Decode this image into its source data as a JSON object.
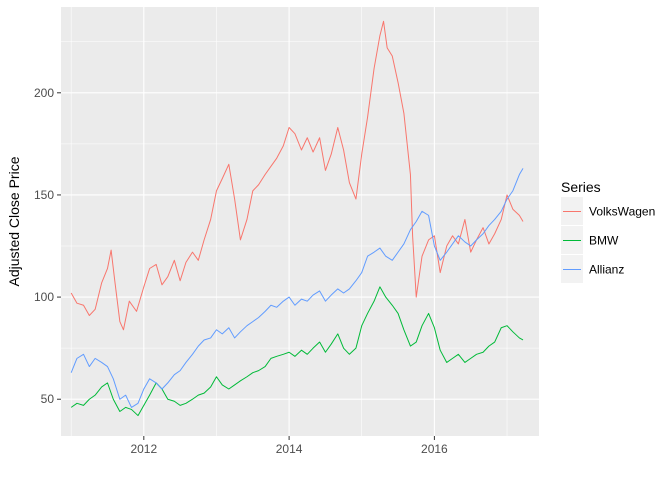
{
  "chart_data": {
    "type": "line",
    "title": "",
    "xlabel": "",
    "ylabel": "Adjusted Close Price",
    "xlim": [
      2010.86,
      2017.44
    ],
    "ylim": [
      32,
      242
    ],
    "x_ticks": [
      2012,
      2014,
      2016
    ],
    "x_tick_labels": [
      "2012",
      "2014",
      "2016"
    ],
    "y_ticks": [
      50,
      100,
      150,
      200
    ],
    "y_tick_labels": [
      "50",
      "100",
      "150",
      "200"
    ],
    "grid": true,
    "legend": {
      "title": "Series",
      "position": "right"
    },
    "series": [
      {
        "name": "VolksWagen",
        "color": "#F8766D",
        "points": [
          [
            2011.0,
            102
          ],
          [
            2011.08,
            97
          ],
          [
            2011.17,
            96
          ],
          [
            2011.25,
            91
          ],
          [
            2011.33,
            94
          ],
          [
            2011.42,
            107
          ],
          [
            2011.5,
            114
          ],
          [
            2011.55,
            123
          ],
          [
            2011.6,
            108
          ],
          [
            2011.67,
            88
          ],
          [
            2011.72,
            84
          ],
          [
            2011.8,
            98
          ],
          [
            2011.9,
            93
          ],
          [
            2012.0,
            105
          ],
          [
            2012.08,
            114
          ],
          [
            2012.17,
            116
          ],
          [
            2012.25,
            106
          ],
          [
            2012.33,
            110
          ],
          [
            2012.42,
            118
          ],
          [
            2012.5,
            108
          ],
          [
            2012.58,
            117
          ],
          [
            2012.67,
            122
          ],
          [
            2012.75,
            118
          ],
          [
            2012.83,
            128
          ],
          [
            2012.92,
            138
          ],
          [
            2013.0,
            152
          ],
          [
            2013.08,
            158
          ],
          [
            2013.17,
            165
          ],
          [
            2013.25,
            148
          ],
          [
            2013.33,
            128
          ],
          [
            2013.42,
            138
          ],
          [
            2013.5,
            152
          ],
          [
            2013.58,
            155
          ],
          [
            2013.67,
            160
          ],
          [
            2013.75,
            164
          ],
          [
            2013.83,
            168
          ],
          [
            2013.92,
            174
          ],
          [
            2014.0,
            183
          ],
          [
            2014.08,
            180
          ],
          [
            2014.17,
            172
          ],
          [
            2014.25,
            178
          ],
          [
            2014.33,
            171
          ],
          [
            2014.42,
            178
          ],
          [
            2014.5,
            162
          ],
          [
            2014.58,
            170
          ],
          [
            2014.67,
            183
          ],
          [
            2014.75,
            172
          ],
          [
            2014.83,
            156
          ],
          [
            2014.92,
            148
          ],
          [
            2015.0,
            170
          ],
          [
            2015.08,
            188
          ],
          [
            2015.17,
            212
          ],
          [
            2015.25,
            228
          ],
          [
            2015.3,
            235
          ],
          [
            2015.35,
            222
          ],
          [
            2015.42,
            218
          ],
          [
            2015.5,
            205
          ],
          [
            2015.58,
            190
          ],
          [
            2015.67,
            160
          ],
          [
            2015.7,
            130
          ],
          [
            2015.75,
            100
          ],
          [
            2015.83,
            120
          ],
          [
            2015.92,
            128
          ],
          [
            2016.0,
            130
          ],
          [
            2016.08,
            112
          ],
          [
            2016.17,
            125
          ],
          [
            2016.25,
            130
          ],
          [
            2016.33,
            126
          ],
          [
            2016.42,
            138
          ],
          [
            2016.5,
            122
          ],
          [
            2016.58,
            128
          ],
          [
            2016.67,
            134
          ],
          [
            2016.75,
            126
          ],
          [
            2016.83,
            131
          ],
          [
            2016.92,
            138
          ],
          [
            2017.0,
            150
          ],
          [
            2017.08,
            143
          ],
          [
            2017.17,
            140
          ],
          [
            2017.22,
            137
          ]
        ]
      },
      {
        "name": "BMW",
        "color": "#00BA38",
        "points": [
          [
            2011.0,
            46
          ],
          [
            2011.08,
            48
          ],
          [
            2011.17,
            47
          ],
          [
            2011.25,
            50
          ],
          [
            2011.33,
            52
          ],
          [
            2011.42,
            56
          ],
          [
            2011.5,
            58
          ],
          [
            2011.58,
            50
          ],
          [
            2011.67,
            44
          ],
          [
            2011.75,
            46
          ],
          [
            2011.83,
            45
          ],
          [
            2011.92,
            42
          ],
          [
            2012.0,
            47
          ],
          [
            2012.08,
            52
          ],
          [
            2012.17,
            58
          ],
          [
            2012.25,
            55
          ],
          [
            2012.33,
            50
          ],
          [
            2012.42,
            49
          ],
          [
            2012.5,
            47
          ],
          [
            2012.58,
            48
          ],
          [
            2012.67,
            50
          ],
          [
            2012.75,
            52
          ],
          [
            2012.83,
            53
          ],
          [
            2012.92,
            56
          ],
          [
            2013.0,
            61
          ],
          [
            2013.08,
            57
          ],
          [
            2013.17,
            55
          ],
          [
            2013.25,
            57
          ],
          [
            2013.33,
            59
          ],
          [
            2013.42,
            61
          ],
          [
            2013.5,
            63
          ],
          [
            2013.58,
            64
          ],
          [
            2013.67,
            66
          ],
          [
            2013.75,
            70
          ],
          [
            2013.83,
            71
          ],
          [
            2013.92,
            72
          ],
          [
            2014.0,
            73
          ],
          [
            2014.08,
            71
          ],
          [
            2014.17,
            74
          ],
          [
            2014.25,
            72
          ],
          [
            2014.33,
            75
          ],
          [
            2014.42,
            78
          ],
          [
            2014.5,
            73
          ],
          [
            2014.58,
            77
          ],
          [
            2014.67,
            82
          ],
          [
            2014.75,
            75
          ],
          [
            2014.83,
            72
          ],
          [
            2014.92,
            75
          ],
          [
            2015.0,
            86
          ],
          [
            2015.08,
            92
          ],
          [
            2015.17,
            98
          ],
          [
            2015.25,
            105
          ],
          [
            2015.33,
            100
          ],
          [
            2015.42,
            96
          ],
          [
            2015.5,
            92
          ],
          [
            2015.58,
            84
          ],
          [
            2015.67,
            76
          ],
          [
            2015.75,
            78
          ],
          [
            2015.83,
            86
          ],
          [
            2015.92,
            92
          ],
          [
            2016.0,
            85
          ],
          [
            2016.08,
            74
          ],
          [
            2016.17,
            68
          ],
          [
            2016.25,
            70
          ],
          [
            2016.33,
            72
          ],
          [
            2016.42,
            68
          ],
          [
            2016.5,
            70
          ],
          [
            2016.58,
            72
          ],
          [
            2016.67,
            73
          ],
          [
            2016.75,
            76
          ],
          [
            2016.83,
            78
          ],
          [
            2016.92,
            85
          ],
          [
            2017.0,
            86
          ],
          [
            2017.08,
            83
          ],
          [
            2017.17,
            80
          ],
          [
            2017.22,
            79
          ]
        ]
      },
      {
        "name": "Allianz",
        "color": "#619CFF",
        "points": [
          [
            2011.0,
            63
          ],
          [
            2011.08,
            70
          ],
          [
            2011.17,
            72
          ],
          [
            2011.25,
            66
          ],
          [
            2011.33,
            70
          ],
          [
            2011.42,
            68
          ],
          [
            2011.5,
            66
          ],
          [
            2011.58,
            60
          ],
          [
            2011.67,
            50
          ],
          [
            2011.75,
            52
          ],
          [
            2011.83,
            46
          ],
          [
            2011.92,
            48
          ],
          [
            2012.0,
            55
          ],
          [
            2012.08,
            60
          ],
          [
            2012.17,
            58
          ],
          [
            2012.25,
            55
          ],
          [
            2012.33,
            58
          ],
          [
            2012.42,
            62
          ],
          [
            2012.5,
            64
          ],
          [
            2012.58,
            68
          ],
          [
            2012.67,
            72
          ],
          [
            2012.75,
            76
          ],
          [
            2012.83,
            79
          ],
          [
            2012.92,
            80
          ],
          [
            2013.0,
            84
          ],
          [
            2013.08,
            82
          ],
          [
            2013.17,
            85
          ],
          [
            2013.25,
            80
          ],
          [
            2013.33,
            83
          ],
          [
            2013.42,
            86
          ],
          [
            2013.5,
            88
          ],
          [
            2013.58,
            90
          ],
          [
            2013.67,
            93
          ],
          [
            2013.75,
            96
          ],
          [
            2013.83,
            95
          ],
          [
            2013.92,
            98
          ],
          [
            2014.0,
            100
          ],
          [
            2014.08,
            96
          ],
          [
            2014.17,
            99
          ],
          [
            2014.25,
            98
          ],
          [
            2014.33,
            101
          ],
          [
            2014.42,
            103
          ],
          [
            2014.5,
            98
          ],
          [
            2014.58,
            101
          ],
          [
            2014.67,
            104
          ],
          [
            2014.75,
            102
          ],
          [
            2014.83,
            104
          ],
          [
            2014.92,
            108
          ],
          [
            2015.0,
            112
          ],
          [
            2015.08,
            120
          ],
          [
            2015.17,
            122
          ],
          [
            2015.25,
            124
          ],
          [
            2015.33,
            120
          ],
          [
            2015.42,
            118
          ],
          [
            2015.5,
            122
          ],
          [
            2015.58,
            126
          ],
          [
            2015.67,
            133
          ],
          [
            2015.75,
            137
          ],
          [
            2015.83,
            142
          ],
          [
            2015.92,
            140
          ],
          [
            2016.0,
            125
          ],
          [
            2016.08,
            118
          ],
          [
            2016.17,
            122
          ],
          [
            2016.25,
            126
          ],
          [
            2016.33,
            130
          ],
          [
            2016.42,
            127
          ],
          [
            2016.5,
            125
          ],
          [
            2016.58,
            128
          ],
          [
            2016.67,
            131
          ],
          [
            2016.75,
            135
          ],
          [
            2016.83,
            138
          ],
          [
            2016.92,
            142
          ],
          [
            2017.0,
            148
          ],
          [
            2017.08,
            152
          ],
          [
            2017.17,
            160
          ],
          [
            2017.22,
            163
          ]
        ]
      }
    ]
  },
  "colors": {
    "panel_background": "#EBEBEB",
    "major_grid": "#FFFFFF",
    "tick_mark": "#333333"
  }
}
